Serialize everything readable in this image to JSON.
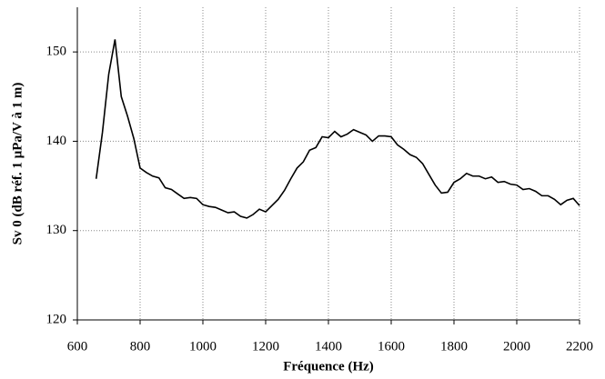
{
  "chart_data": {
    "type": "line",
    "x_label": "Fréquence (Hz)",
    "y_label": "Sv 0 (dB réf. 1 µPa/V à 1 m)",
    "x": [
      660,
      680,
      700,
      720,
      740,
      760,
      780,
      800,
      820,
      840,
      860,
      880,
      900,
      920,
      940,
      960,
      980,
      1000,
      1020,
      1040,
      1060,
      1080,
      1100,
      1120,
      1140,
      1160,
      1180,
      1200,
      1220,
      1240,
      1260,
      1280,
      1300,
      1320,
      1340,
      1360,
      1380,
      1400,
      1420,
      1440,
      1460,
      1480,
      1500,
      1520,
      1540,
      1560,
      1580,
      1600,
      1620,
      1640,
      1660,
      1680,
      1700,
      1720,
      1740,
      1760,
      1780,
      1800,
      1820,
      1840,
      1860,
      1880,
      1900,
      1920,
      1940,
      1960,
      1980,
      2000,
      2020,
      2040,
      2060,
      2080,
      2100,
      2120,
      2140,
      2160,
      2180,
      2200
    ],
    "values": [
      135.8,
      141,
      147.5,
      151.4,
      145,
      142.8,
      140.3,
      137,
      136.5,
      136.1,
      135.9,
      134.8,
      134.6,
      134.1,
      133.6,
      133.7,
      133.6,
      132.9,
      132.7,
      132.6,
      132.3,
      132,
      132.1,
      131.6,
      131.4,
      131.8,
      132.4,
      132.1,
      132.8,
      133.5,
      134.5,
      135.8,
      137,
      137.7,
      139,
      139.3,
      140.5,
      140.4,
      141.1,
      140.5,
      140.8,
      141.3,
      141,
      140.7,
      140,
      140.6,
      140.6,
      140.5,
      139.6,
      139.1,
      138.5,
      138.2,
      137.5,
      136.3,
      135.1,
      134.2,
      134.3,
      135.4,
      135.8,
      136.4,
      136.1,
      136.1,
      135.8,
      136,
      135.4,
      135.5,
      135.2,
      135.1,
      134.6,
      134.7,
      134.4,
      133.9,
      133.9,
      133.5,
      132.9,
      133.4,
      133.6,
      132.8
    ],
    "color": "#000000",
    "xlim": [
      600,
      2200
    ],
    "xticks": [
      600,
      800,
      1000,
      1200,
      1400,
      1600,
      1800,
      2000,
      2200
    ],
    "ylim": [
      120,
      155
    ],
    "yticks": [
      120,
      130,
      140,
      150
    ],
    "grid": true
  }
}
